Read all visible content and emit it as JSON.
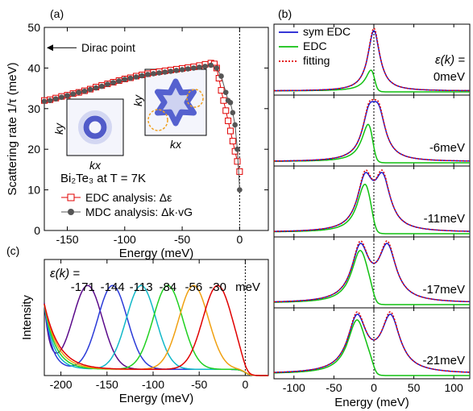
{
  "chart_data": [
    {
      "panel": "(a)",
      "type": "scatter",
      "ylabel": "Scattering rate 1/τ (meV)",
      "xlabel": "Energy (meV)",
      "xlim": [
        -170,
        25
      ],
      "ylim": [
        0,
        50
      ],
      "xticks": [
        -150,
        -100,
        -50,
        0
      ],
      "yticks": [
        0,
        10,
        20,
        30,
        40,
        50
      ],
      "grid": false,
      "annotations": {
        "dirac_label": "Dirac point",
        "sample_label": "Bi₂Te₃ at T = 7K",
        "inset_xlabel": "kx",
        "inset_ylabel": "ky"
      },
      "series": [
        {
          "name": "EDC analysis: Δε",
          "color": "#e00000",
          "marker": "open-square",
          "x": [
            -170,
            -165,
            -160,
            -155,
            -150,
            -145,
            -140,
            -135,
            -130,
            -125,
            -120,
            -115,
            -110,
            -105,
            -100,
            -95,
            -90,
            -85,
            -80,
            -75,
            -70,
            -65,
            -60,
            -55,
            -50,
            -45,
            -40,
            -35,
            -30,
            -25,
            -22,
            -20,
            -18,
            -16,
            -14,
            -12,
            -10,
            -8,
            -6,
            -4,
            -2,
            0
          ],
          "y": [
            32.0,
            32.2,
            32.6,
            33.0,
            33.3,
            33.7,
            34.0,
            34.4,
            34.8,
            35.3,
            35.7,
            36.1,
            36.5,
            36.9,
            37.3,
            37.6,
            38.0,
            38.3,
            38.6,
            38.9,
            39.1,
            39.3,
            39.5,
            39.7,
            39.9,
            40.1,
            40.3,
            40.6,
            40.9,
            41.2,
            41.0,
            40.0,
            37.5,
            34.5,
            32.0,
            29.5,
            27.0,
            24.5,
            22.0,
            19.5,
            17.0,
            14.5
          ]
        },
        {
          "name": "MDC analysis: Δk·vG",
          "color": "#555555",
          "marker": "filled-circle",
          "x": [
            -170,
            -165,
            -160,
            -155,
            -150,
            -145,
            -140,
            -135,
            -130,
            -125,
            -120,
            -115,
            -110,
            -105,
            -100,
            -95,
            -90,
            -85,
            -80,
            -75,
            -70,
            -65,
            -60,
            -55,
            -50,
            -45,
            -40,
            -35,
            -30,
            -25,
            -20,
            -16,
            -12,
            -10,
            -8,
            -6,
            -4,
            -2,
            0
          ],
          "y": [
            31.8,
            32.0,
            32.4,
            32.8,
            33.2,
            33.6,
            34.0,
            34.3,
            34.7,
            35.1,
            35.5,
            36.0,
            36.4,
            36.8,
            37.2,
            37.5,
            37.8,
            38.1,
            38.4,
            38.6,
            38.8,
            39.0,
            39.2,
            39.4,
            39.6,
            39.8,
            40.0,
            40.2,
            40.4,
            40.7,
            40.0,
            38.0,
            34.0,
            32.0,
            31.5,
            29.0,
            26.0,
            20.0,
            10.0
          ]
        }
      ]
    },
    {
      "panel": "(b)",
      "type": "line",
      "xlabel": "Energy (meV)",
      "xlim": [
        -125,
        120
      ],
      "xticks": [
        -100,
        -50,
        0,
        50,
        100
      ],
      "legend": [
        "sym EDC",
        "EDC",
        "fitting"
      ],
      "legend_colors": [
        "#1a1ad0",
        "#10c010",
        "#e00000"
      ],
      "eps_label": "ε(k) =",
      "subpanels": [
        {
          "label": "0meV",
          "peak": 0
        },
        {
          "label": "-6meV",
          "peak": 6
        },
        {
          "label": "-11meV",
          "peak": 11
        },
        {
          "label": "-17meV",
          "peak": 17
        },
        {
          "label": "-21meV",
          "peak": 21
        }
      ]
    },
    {
      "panel": "(c)",
      "type": "line",
      "ylabel": "Intensity",
      "xlabel": "Energy (meV)",
      "xlim": [
        -218,
        25
      ],
      "xticks": [
        -200,
        -150,
        -100,
        -50,
        0
      ],
      "eps_label": "ε(k) =",
      "unit_label": "meV",
      "series": [
        {
          "name": "-171",
          "peak": -171,
          "color": "#5a0a8a"
        },
        {
          "name": "-144",
          "peak": -144,
          "color": "#2a3ad8"
        },
        {
          "name": "-113",
          "peak": -113,
          "color": "#10b8c8"
        },
        {
          "name": "-84",
          "peak": -84,
          "color": "#20d020"
        },
        {
          "name": "-56",
          "peak": -56,
          "color": "#f0a010"
        },
        {
          "name": "-30",
          "peak": -30,
          "color": "#e00000"
        }
      ]
    }
  ]
}
